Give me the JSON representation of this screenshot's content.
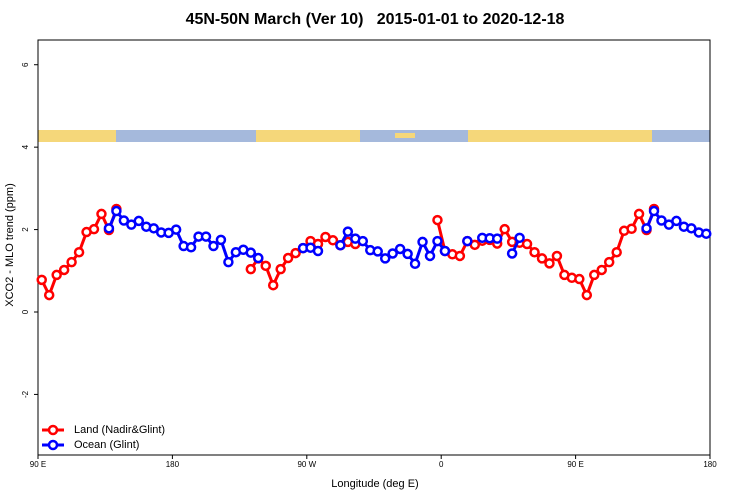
{
  "chart_data": {
    "type": "line",
    "title": "45N-50N March (Ver 10)   2015-01-01 to 2020-12-18",
    "xlabel": "Longitude (deg E)",
    "ylabel": "XCO2 - MLO trend (ppm)",
    "xlim": [
      90,
      540
    ],
    "ylim": [
      -3.47,
      6.6
    ],
    "xticks": [
      {
        "value": 90,
        "label": "90 E"
      },
      180,
      {
        "value": 270,
        "label": "90 W"
      },
      {
        "value": 360,
        "label": "0"
      },
      {
        "value": 450,
        "label": "90 E"
      },
      {
        "value": 540,
        "label": "180"
      }
    ],
    "yticks": [
      -2,
      0,
      2,
      4,
      6
    ],
    "legend": "bottomleft",
    "x": [
      92.5,
      97.5,
      102.5,
      107.5,
      112.5,
      117.5,
      122.5,
      127.5,
      132.5,
      137.5,
      142.5,
      147.5,
      152.5,
      157.5,
      162.5,
      167.5,
      172.5,
      177.5,
      182.5,
      187.5,
      192.5,
      197.5,
      202.5,
      207.5,
      212.5,
      217.5,
      222.5,
      227.5,
      232.5,
      237.5,
      242.5,
      247.5,
      252.5,
      257.5,
      262.5,
      267.5,
      272.5,
      277.5,
      282.5,
      287.5,
      292.5,
      297.5,
      302.5,
      307.5,
      312.5,
      317.5,
      322.5,
      327.5,
      332.5,
      337.5,
      342.5,
      347.5,
      352.5,
      357.5,
      362.5,
      367.5,
      372.5,
      377.5,
      382.5,
      387.5,
      392.5,
      397.5,
      402.5,
      407.5,
      412.5,
      417.5,
      422.5,
      427.5,
      432.5,
      437.5,
      442.5,
      447.5,
      452.5,
      457.5,
      462.5,
      467.5,
      472.5,
      477.5,
      482.5,
      487.5,
      492.5,
      497.5,
      502.5,
      507.5,
      512.5,
      517.5,
      522.5,
      527.5,
      532.5,
      537.5
    ],
    "series": [
      {
        "name": "Land (Nadir&Glint)",
        "color": "#ff0000",
        "values": [
          0.78,
          0.41,
          0.9,
          1.02,
          1.21,
          1.45,
          1.94,
          2.01,
          2.38,
          1.99,
          2.5,
          null,
          null,
          null,
          null,
          null,
          null,
          null,
          null,
          null,
          null,
          null,
          null,
          null,
          null,
          null,
          null,
          null,
          1.04,
          1.3,
          1.12,
          0.65,
          1.04,
          1.31,
          1.43,
          1.55,
          1.72,
          1.65,
          1.82,
          1.74,
          1.62,
          1.7,
          1.65,
          null,
          null,
          null,
          null,
          null,
          null,
          null,
          null,
          null,
          null,
          2.23,
          1.48,
          1.4,
          1.36,
          1.72,
          1.63,
          1.73,
          1.75,
          1.66,
          2.01,
          1.7,
          1.68,
          1.65,
          1.45,
          1.3,
          1.18,
          1.36,
          0.9,
          0.83,
          0.8,
          0.41,
          0.9,
          1.02,
          1.21,
          1.45,
          1.97,
          2.02,
          2.38,
          1.99,
          2.5,
          null,
          null,
          null,
          null,
          null,
          null,
          null
        ]
      },
      {
        "name": "Ocean (Glint)",
        "color": "#0000ff",
        "values": [
          null,
          null,
          null,
          null,
          null,
          null,
          null,
          null,
          null,
          2.03,
          2.45,
          2.22,
          2.12,
          2.21,
          2.07,
          2.03,
          1.93,
          1.92,
          2.0,
          1.6,
          1.57,
          1.83,
          1.83,
          1.6,
          1.75,
          1.21,
          1.45,
          1.51,
          1.44,
          1.31,
          null,
          null,
          null,
          null,
          null,
          1.55,
          1.56,
          1.48,
          null,
          null,
          1.62,
          1.95,
          1.78,
          1.72,
          1.5,
          1.47,
          1.3,
          1.42,
          1.53,
          1.41,
          1.17,
          1.7,
          1.36,
          1.72,
          1.48,
          null,
          null,
          1.72,
          null,
          1.8,
          1.79,
          1.78,
          null,
          1.42,
          1.8,
          null,
          null,
          null,
          null,
          null,
          null,
          null,
          null,
          null,
          null,
          null,
          null,
          null,
          null,
          null,
          null,
          2.03,
          2.45,
          2.22,
          2.12,
          2.21,
          2.07,
          2.03,
          1.93,
          1.9
        ]
      }
    ]
  }
}
